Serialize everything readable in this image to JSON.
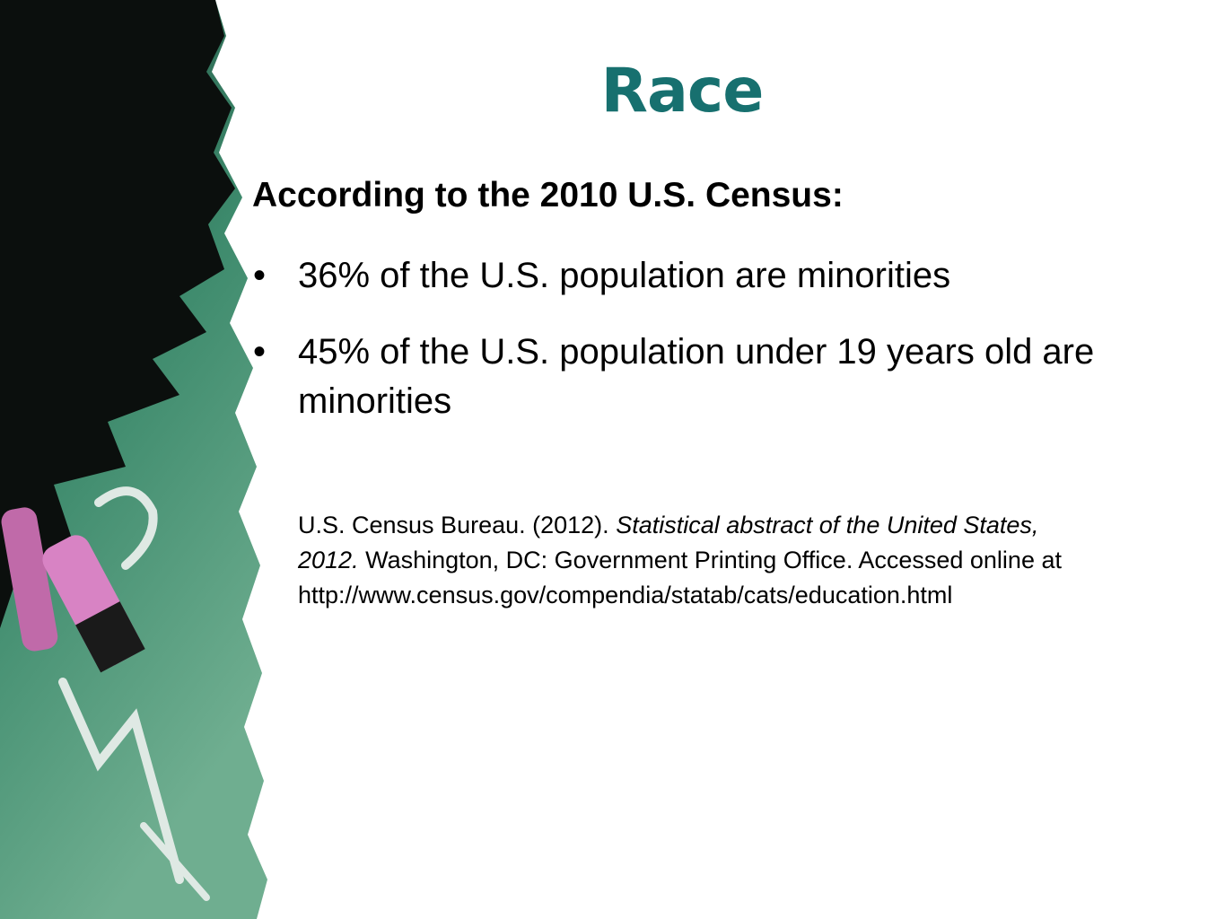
{
  "slide": {
    "title": "Race",
    "heading": "According to the 2010 U.S. Census:",
    "bullets": [
      "36% of the U.S. population are minorities",
      "45% of the U.S. population under 19 years old are minorities"
    ],
    "citation": {
      "author": "U.S. Census Bureau. (2012).",
      "title": "Statistical abstract of the United States, 2012.",
      "publisher": "Washington, DC: Government Printing Office.",
      "access": "Accessed online at",
      "url": "http://www.census.gov/compendia/statab/cats/education.html"
    }
  }
}
